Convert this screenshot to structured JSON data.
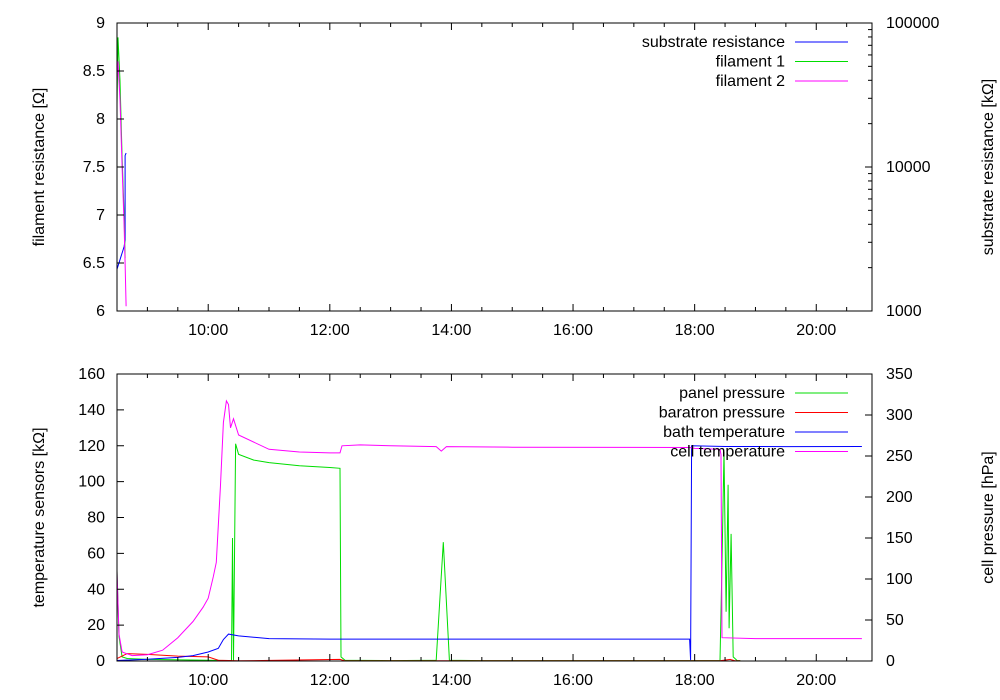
{
  "chart_data": [
    {
      "type": "line",
      "x_unit": "time of day",
      "xlim": [
        "08:30",
        "20:55"
      ],
      "x_ticks": [
        "10:00",
        "12:00",
        "14:00",
        "16:00",
        "18:00",
        "20:00"
      ],
      "ylabel": "filament resistance [Ω]",
      "ylim": [
        6,
        9
      ],
      "y_ticks": [
        "6",
        "6.5",
        "7",
        "7.5",
        "8",
        "8.5",
        "9"
      ],
      "y2label": "substrate resistance [kΩ]",
      "y2_scale": "log",
      "y2lim": [
        1000,
        100000
      ],
      "y2_ticks": [
        "1000",
        "10000",
        "100000"
      ],
      "legend_position": "top-right",
      "grid": false,
      "series": [
        {
          "name": "substrate resistance",
          "color": "#0000ff",
          "axis": "y2",
          "points": [
            [
              "08:30",
              1950
            ],
            [
              "08:34",
              2400
            ],
            [
              "08:37",
              2800
            ],
            [
              "08:38",
              3100
            ],
            [
              "08:38",
              12000
            ],
            [
              "08:39",
              12500
            ]
          ]
        },
        {
          "name": "filament 1",
          "color": "#00dd00",
          "axis": "y",
          "points": [
            [
              "08:30",
              8.15
            ],
            [
              "08:31",
              8.85
            ],
            [
              "08:33",
              8.4
            ],
            [
              "08:35",
              7.6
            ],
            [
              "08:37",
              7.0
            ],
            [
              "08:38",
              6.55
            ]
          ]
        },
        {
          "name": "filament 2",
          "color": "#ff00ff",
          "axis": "y",
          "points": [
            [
              "08:30",
              8.4
            ],
            [
              "08:31",
              8.6
            ],
            [
              "08:33",
              8.2
            ],
            [
              "08:35",
              7.5
            ],
            [
              "08:37",
              6.9
            ],
            [
              "08:38",
              6.5
            ],
            [
              "08:39",
              6.05
            ]
          ]
        }
      ]
    },
    {
      "type": "line",
      "x_unit": "time of day",
      "xlim": [
        "08:30",
        "20:55"
      ],
      "x_ticks": [
        "10:00",
        "12:00",
        "14:00",
        "16:00",
        "18:00",
        "20:00"
      ],
      "ylabel": "temperature sensors [kΩ]",
      "ylim": [
        0,
        160
      ],
      "y_ticks": [
        "0",
        "20",
        "40",
        "60",
        "80",
        "100",
        "120",
        "140",
        "160"
      ],
      "y2label": "cell pressure [hPa]",
      "y2lim": [
        0,
        350
      ],
      "y2_ticks": [
        "0",
        "50",
        "100",
        "150",
        "200",
        "250",
        "300",
        "350"
      ],
      "legend_position": "top-right",
      "grid": false,
      "series": [
        {
          "name": "panel pressure",
          "color": "#00dd00",
          "axis": "y2",
          "points": [
            [
              "08:30",
              110
            ],
            [
              "08:32",
              30
            ],
            [
              "08:35",
              5
            ],
            [
              "08:40",
              3
            ],
            [
              "09:00",
              2
            ],
            [
              "10:00",
              1
            ],
            [
              "10:23",
              0.5
            ],
            [
              "10:24",
              150
            ],
            [
              "10:25",
              0.5
            ],
            [
              "10:27",
              265
            ],
            [
              "10:30",
              252
            ],
            [
              "10:45",
              245
            ],
            [
              "11:00",
              242
            ],
            [
              "11:30",
              238
            ],
            [
              "12:00",
              236
            ],
            [
              "12:10",
              235
            ],
            [
              "12:11",
              5
            ],
            [
              "12:15",
              1
            ],
            [
              "13:00",
              0.5
            ],
            [
              "13:45",
              1
            ],
            [
              "13:52",
              145
            ],
            [
              "13:58",
              1
            ],
            [
              "14:30",
              0.5
            ],
            [
              "17:00",
              0.5
            ],
            [
              "18:25",
              0.5
            ],
            [
              "18:27",
              120
            ],
            [
              "18:29",
              255
            ],
            [
              "18:31",
              60
            ],
            [
              "18:33",
              215
            ],
            [
              "18:34",
              40
            ],
            [
              "18:36",
              155
            ],
            [
              "18:38",
              5
            ],
            [
              "18:42",
              0.5
            ],
            [
              "18:45",
              0.5
            ]
          ]
        },
        {
          "name": "baratron pressure",
          "color": "#ff0000",
          "axis": "y2",
          "points": [
            [
              "08:30",
              3
            ],
            [
              "08:40",
              9
            ],
            [
              "09:00",
              8
            ],
            [
              "09:30",
              6
            ],
            [
              "10:00",
              5
            ],
            [
              "10:10",
              1
            ],
            [
              "10:30",
              0.3
            ],
            [
              "12:10",
              2
            ],
            [
              "12:15",
              0.2
            ],
            [
              "18:25",
              0.2
            ],
            [
              "18:35",
              2
            ],
            [
              "18:40",
              0.2
            ],
            [
              "18:45",
              0.2
            ]
          ]
        },
        {
          "name": "bath temperature",
          "color": "#0000ff",
          "axis": "y",
          "points": [
            [
              "08:30",
              0.3
            ],
            [
              "09:00",
              1
            ],
            [
              "09:30",
              2
            ],
            [
              "09:45",
              3
            ],
            [
              "10:00",
              5
            ],
            [
              "10:10",
              7
            ],
            [
              "10:15",
              12
            ],
            [
              "10:20",
              15
            ],
            [
              "10:30",
              14
            ],
            [
              "11:00",
              12.5
            ],
            [
              "12:00",
              12.2
            ],
            [
              "14:00",
              12.2
            ],
            [
              "16:00",
              12.2
            ],
            [
              "17:55",
              12.2
            ],
            [
              "17:56",
              0.5
            ],
            [
              "17:57",
              120
            ],
            [
              "18:30",
              119.6
            ],
            [
              "19:30",
              119.5
            ],
            [
              "20:45",
              119.6
            ]
          ]
        },
        {
          "name": "cell temperature",
          "color": "#ff00ff",
          "axis": "y",
          "points": [
            [
              "08:30",
              50
            ],
            [
              "08:32",
              15
            ],
            [
              "08:35",
              5
            ],
            [
              "08:45",
              3
            ],
            [
              "09:00",
              3.5
            ],
            [
              "09:15",
              6
            ],
            [
              "09:30",
              13
            ],
            [
              "09:45",
              22
            ],
            [
              "09:55",
              30
            ],
            [
              "10:00",
              35
            ],
            [
              "10:05",
              47
            ],
            [
              "10:08",
              55
            ],
            [
              "10:12",
              97
            ],
            [
              "10:15",
              133
            ],
            [
              "10:18",
              145
            ],
            [
              "10:20",
              143
            ],
            [
              "10:22",
              130
            ],
            [
              "10:25",
              135
            ],
            [
              "10:30",
              126
            ],
            [
              "11:00",
              118
            ],
            [
              "11:30",
              116.5
            ],
            [
              "12:00",
              116
            ],
            [
              "12:10",
              116
            ],
            [
              "12:12",
              120
            ],
            [
              "12:30",
              120.5
            ],
            [
              "13:00",
              120
            ],
            [
              "13:45",
              119.5
            ],
            [
              "13:50",
              117
            ],
            [
              "13:55",
              119.5
            ],
            [
              "15:00",
              119.2
            ],
            [
              "17:55",
              119
            ],
            [
              "18:00",
              118.5
            ],
            [
              "18:25",
              118
            ],
            [
              "18:26",
              115
            ],
            [
              "18:27",
              13
            ],
            [
              "19:00",
              12.5
            ],
            [
              "20:00",
              12.5
            ],
            [
              "20:45",
              12.5
            ]
          ]
        }
      ]
    }
  ]
}
